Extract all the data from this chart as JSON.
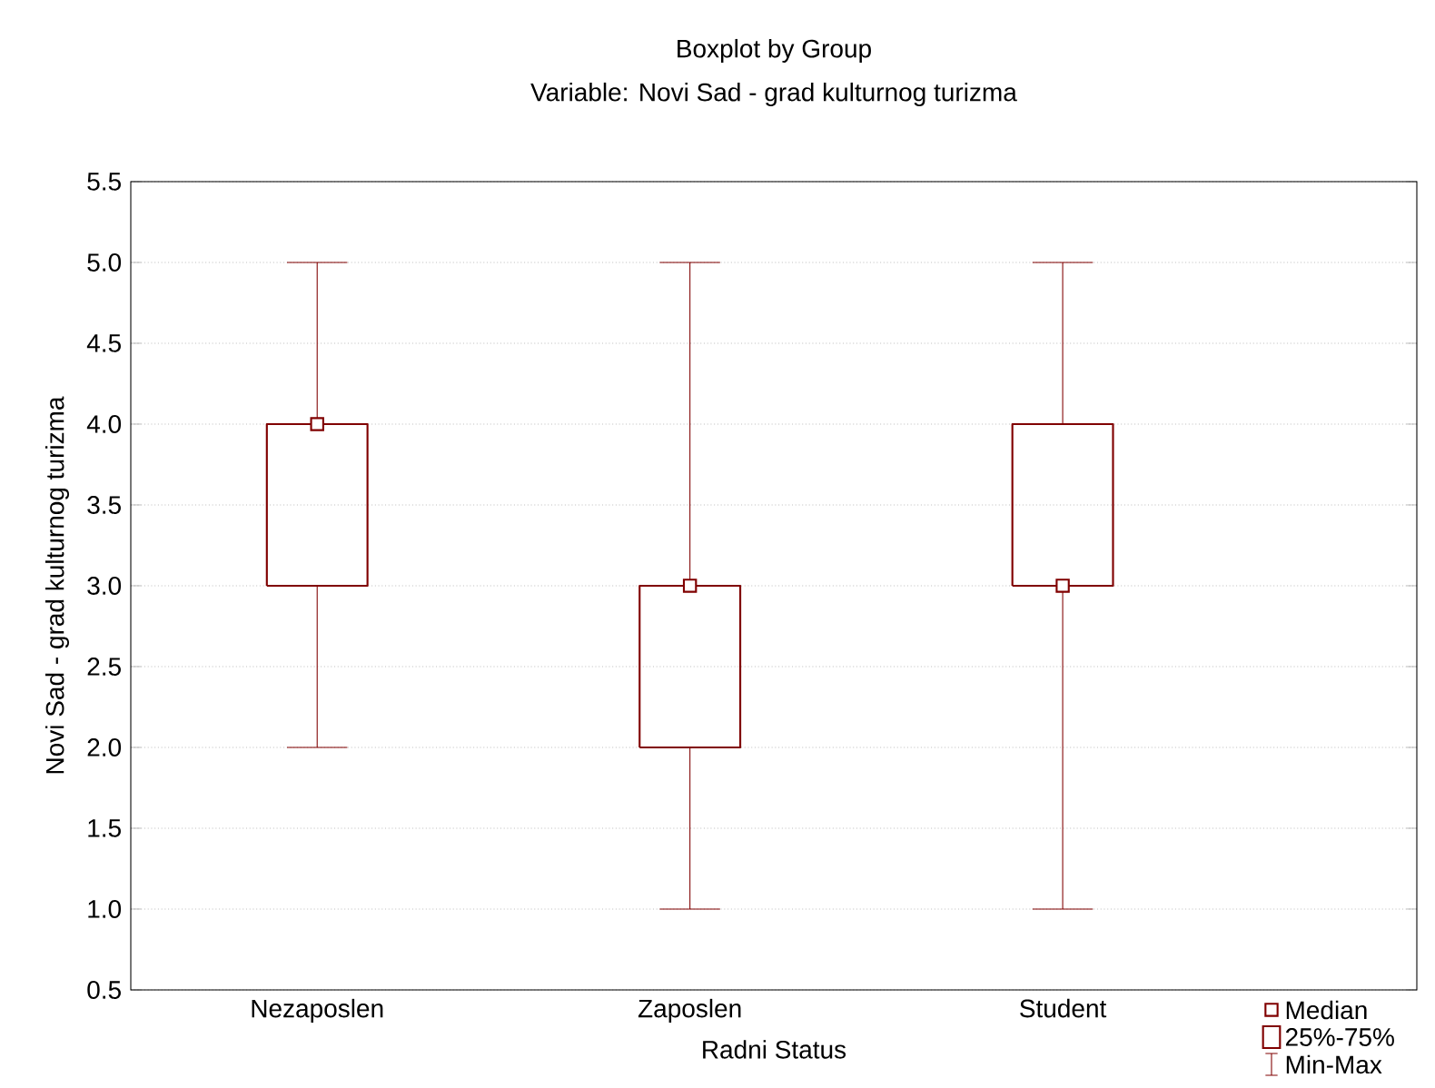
{
  "chart_data": {
    "type": "box",
    "title": "Boxplot by Group",
    "subtitle": "Variable: Novi Sad - grad kulturnog turizma",
    "xlabel": "Radni Status",
    "ylabel": "Novi Sad - grad kulturnog turizma",
    "categories": [
      "Nezaposlen",
      "Zaposlen",
      "Student"
    ],
    "color": "#800000",
    "boxes": [
      {
        "low": 2,
        "q1": 3,
        "median": 4,
        "q3": 4,
        "high": 5
      },
      {
        "low": 1,
        "q1": 2,
        "median": 3,
        "q3": 3,
        "high": 5
      },
      {
        "low": 1,
        "q1": 3,
        "median": 3,
        "q3": 4,
        "high": 5
      }
    ],
    "ylim": [
      0.5,
      5.5
    ],
    "yticks": [
      {
        "value": 0.5,
        "label": "0.5"
      },
      {
        "value": 1,
        "label": "1.0"
      },
      {
        "value": 1.5,
        "label": "1.5"
      },
      {
        "value": 2,
        "label": "2.0"
      },
      {
        "value": 2.5,
        "label": "2.5"
      },
      {
        "value": 3,
        "label": "3.0"
      },
      {
        "value": 3.5,
        "label": "3.5"
      },
      {
        "value": 4,
        "label": "4.0"
      },
      {
        "value": 4.5,
        "label": "4.5"
      },
      {
        "value": 5,
        "label": "5.0"
      },
      {
        "value": 5.5,
        "label": "5.5"
      }
    ],
    "grid": "y",
    "marker": "square",
    "annotations": [
      "Median",
      "25%-75%",
      "Min-Max"
    ]
  }
}
